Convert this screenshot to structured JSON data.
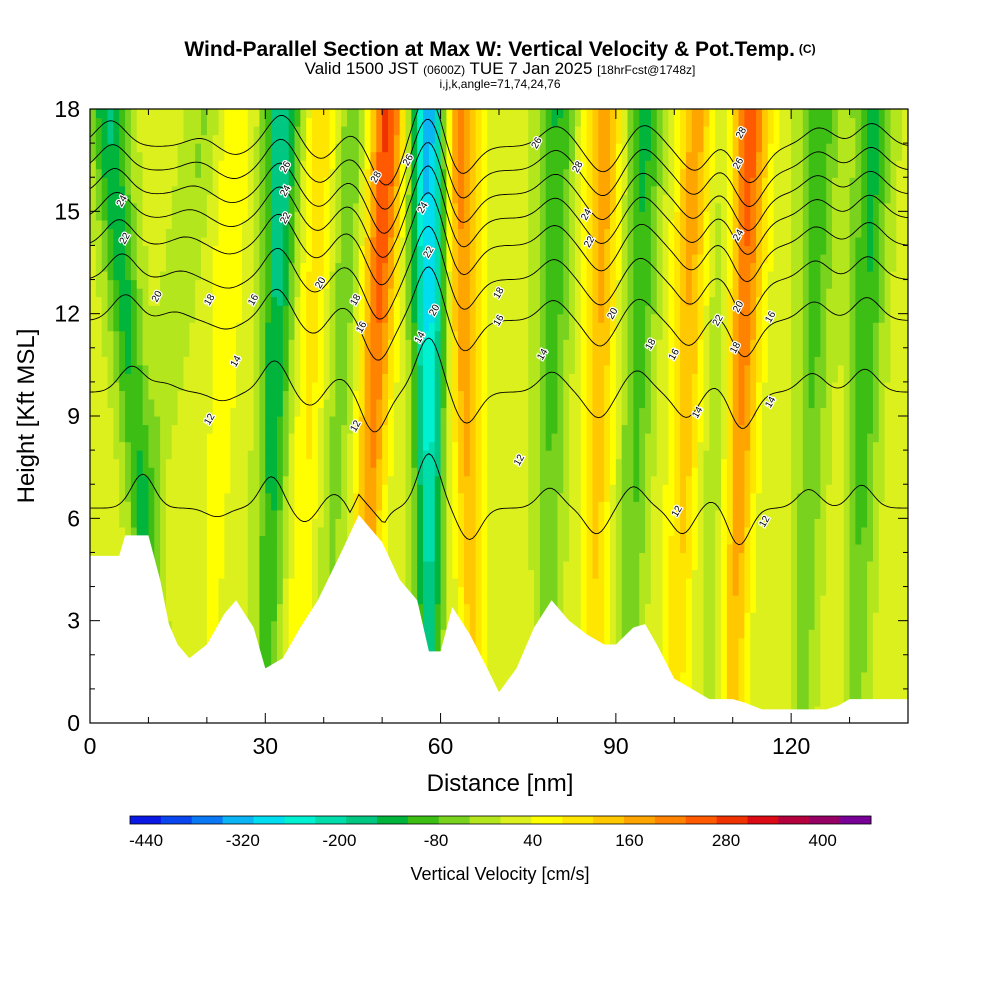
{
  "header": {
    "title": "Wind-Parallel Section at Max W: Vertical Velocity & Pot.Temp.",
    "title_mark": "(C)",
    "valid_prefix": "Valid 1500 JST",
    "valid_utc": "(0600Z)",
    "valid_date": "TUE 7 Jan 2025",
    "forecast_info": "[18hrFcst@1748z]",
    "section_info": "i,j,k,angle=71,74,24,76"
  },
  "chart_data": {
    "type": "heatmap",
    "title": "Wind-Parallel Section at Max W: Vertical Velocity & Pot.Temp.",
    "xlabel": "Distance [nm]",
    "ylabel": "Height [Kft MSL]",
    "xlim": [
      0,
      140
    ],
    "ylim": [
      0,
      18
    ],
    "x_ticks": [
      "0",
      "30",
      "60",
      "90",
      "120"
    ],
    "y_ticks": [
      "0",
      "3",
      "6",
      "9",
      "12",
      "15",
      "18"
    ],
    "colorbar": {
      "label": "Vertical Velocity [cm/s]",
      "tick_labels": [
        "-440",
        "-320",
        "-200",
        "-80",
        "40",
        "160",
        "280",
        "400"
      ],
      "min": -460,
      "max": 460,
      "step": 40,
      "colors": [
        "#0a18e6",
        "#0a46f0",
        "#0a78f5",
        "#0ab4f5",
        "#00dcf0",
        "#00f0d2",
        "#00dcaa",
        "#00c882",
        "#00b43c",
        "#3cbe14",
        "#78d21e",
        "#b4e61e",
        "#dcf01e",
        "#ffff00",
        "#ffe600",
        "#ffc800",
        "#ffa500",
        "#ff8200",
        "#ff5a00",
        "#f03200",
        "#dc0a14",
        "#b4003c",
        "#960064",
        "#780096"
      ]
    },
    "terrain_kft": [
      [
        0,
        4.9
      ],
      [
        5,
        4.9
      ],
      [
        6,
        5.5
      ],
      [
        10,
        5.5
      ],
      [
        12,
        4.2
      ],
      [
        13.5,
        2.9
      ],
      [
        15,
        2.3
      ],
      [
        17,
        1.9
      ],
      [
        20,
        2.3
      ],
      [
        23,
        3.2
      ],
      [
        25,
        3.6
      ],
      [
        28,
        2.8
      ],
      [
        30,
        1.6
      ],
      [
        33,
        1.9
      ],
      [
        36,
        2.8
      ],
      [
        39,
        3.6
      ],
      [
        43,
        5.0
      ],
      [
        46,
        6.1
      ],
      [
        50,
        5.3
      ],
      [
        53,
        4.2
      ],
      [
        56,
        3.6
      ],
      [
        58,
        2.1
      ],
      [
        60,
        2.1
      ],
      [
        62,
        3.4
      ],
      [
        65,
        2.6
      ],
      [
        68,
        1.6
      ],
      [
        70,
        0.9
      ],
      [
        73,
        1.6
      ],
      [
        76,
        2.8
      ],
      [
        79,
        3.6
      ],
      [
        82,
        3.0
      ],
      [
        85,
        2.6
      ],
      [
        88,
        2.3
      ],
      [
        90,
        2.3
      ],
      [
        93,
        2.8
      ],
      [
        95,
        2.9
      ],
      [
        97,
        2.3
      ],
      [
        100,
        1.3
      ],
      [
        103,
        1.0
      ],
      [
        106,
        0.7
      ],
      [
        110,
        0.7
      ],
      [
        112,
        0.6
      ],
      [
        115,
        0.4
      ],
      [
        118,
        0.4
      ],
      [
        121,
        0.4
      ],
      [
        126,
        0.4
      ],
      [
        128,
        0.5
      ],
      [
        130,
        0.7
      ],
      [
        135,
        0.7
      ],
      [
        140,
        0.7
      ]
    ],
    "vertical_velocity_bands": [
      {
        "x_base": 4,
        "x_top": 20,
        "w_cms": -60
      },
      {
        "x_base": 12,
        "x_top": 3,
        "w_cms": -180
      },
      {
        "x_base": 20,
        "x_top": 25,
        "w_cms": 60
      },
      {
        "x_base": 30,
        "x_top": 33,
        "w_cms": -220
      },
      {
        "x_base": 35,
        "x_top": 40,
        "w_cms": 100
      },
      {
        "x_base": 40,
        "x_top": 45,
        "w_cms": -100
      },
      {
        "x_base": 46,
        "x_top": 51,
        "w_cms": 280
      },
      {
        "x_base": 58,
        "x_top": 58,
        "w_cms": -380
      },
      {
        "x_base": 66,
        "x_top": 63,
        "w_cms": 220
      },
      {
        "x_base": 78,
        "x_top": 80,
        "w_cms": -140
      },
      {
        "x_base": 86,
        "x_top": 88,
        "w_cms": 180
      },
      {
        "x_base": 92,
        "x_top": 95,
        "w_cms": -150
      },
      {
        "x_base": 100,
        "x_top": 104,
        "w_cms": 180
      },
      {
        "x_base": 106,
        "x_top": 108,
        "w_cms": -60
      },
      {
        "x_base": 110,
        "x_top": 113,
        "w_cms": 260
      },
      {
        "x_base": 122,
        "x_top": 125,
        "w_cms": -130
      },
      {
        "x_base": 131,
        "x_top": 134,
        "w_cms": -160
      }
    ],
    "theta_contours": [
      {
        "level": 12,
        "base_kft": 6.3
      },
      {
        "level": 14,
        "base_kft": 9.7
      },
      {
        "level": 16,
        "base_kft": 11.8
      },
      {
        "level": 18,
        "base_kft": 13.0
      },
      {
        "level": 20,
        "base_kft": 14.0
      },
      {
        "level": 22,
        "base_kft": 14.8
      },
      {
        "level": 24,
        "base_kft": 15.5
      },
      {
        "level": 26,
        "base_kft": 16.2
      },
      {
        "level": 28,
        "base_kft": 16.9
      }
    ],
    "contour_labels": [
      {
        "text": "24",
        "x": 5.5,
        "y": 15.3
      },
      {
        "text": "22",
        "x": 6.0,
        "y": 14.2
      },
      {
        "text": "20",
        "x": 11.5,
        "y": 12.5
      },
      {
        "text": "18",
        "x": 20.5,
        "y": 12.4
      },
      {
        "text": "16",
        "x": 28.0,
        "y": 12.4
      },
      {
        "text": "14",
        "x": 25.0,
        "y": 10.6
      },
      {
        "text": "12",
        "x": 20.5,
        "y": 8.9
      },
      {
        "text": "26",
        "x": 33.5,
        "y": 16.3
      },
      {
        "text": "24",
        "x": 33.5,
        "y": 15.6
      },
      {
        "text": "22",
        "x": 33.5,
        "y": 14.8
      },
      {
        "text": "20",
        "x": 39.5,
        "y": 12.9
      },
      {
        "text": "18",
        "x": 45.5,
        "y": 12.4
      },
      {
        "text": "16",
        "x": 46.5,
        "y": 11.6
      },
      {
        "text": "12",
        "x": 45.5,
        "y": 8.7
      },
      {
        "text": "28",
        "x": 49.0,
        "y": 16.0
      },
      {
        "text": "26",
        "x": 54.5,
        "y": 16.5
      },
      {
        "text": "24",
        "x": 57.0,
        "y": 15.1
      },
      {
        "text": "22",
        "x": 58.0,
        "y": 13.8
      },
      {
        "text": "20",
        "x": 59.0,
        "y": 12.1
      },
      {
        "text": "14",
        "x": 56.5,
        "y": 11.3
      },
      {
        "text": "18",
        "x": 70.0,
        "y": 12.6
      },
      {
        "text": "16",
        "x": 70.0,
        "y": 11.8
      },
      {
        "text": "14",
        "x": 77.5,
        "y": 10.8
      },
      {
        "text": "12",
        "x": 73.5,
        "y": 7.7
      },
      {
        "text": "26",
        "x": 76.5,
        "y": 17.0
      },
      {
        "text": "28",
        "x": 83.5,
        "y": 16.3
      },
      {
        "text": "24",
        "x": 85.0,
        "y": 14.9
      },
      {
        "text": "22",
        "x": 85.5,
        "y": 14.1
      },
      {
        "text": "20",
        "x": 89.5,
        "y": 12.0
      },
      {
        "text": "18",
        "x": 96.0,
        "y": 11.1
      },
      {
        "text": "16",
        "x": 100.0,
        "y": 10.8
      },
      {
        "text": "12",
        "x": 100.5,
        "y": 6.2
      },
      {
        "text": "14",
        "x": 104.0,
        "y": 9.1
      },
      {
        "text": "22",
        "x": 107.5,
        "y": 11.8
      },
      {
        "text": "20",
        "x": 111.0,
        "y": 12.2
      },
      {
        "text": "18",
        "x": 110.5,
        "y": 11.0
      },
      {
        "text": "26",
        "x": 111.0,
        "y": 16.4
      },
      {
        "text": "28",
        "x": 111.5,
        "y": 17.3
      },
      {
        "text": "24",
        "x": 111.0,
        "y": 14.3
      },
      {
        "text": "16",
        "x": 116.5,
        "y": 11.9
      },
      {
        "text": "14",
        "x": 116.5,
        "y": 9.4
      },
      {
        "text": "12",
        "x": 115.5,
        "y": 5.9
      }
    ]
  }
}
